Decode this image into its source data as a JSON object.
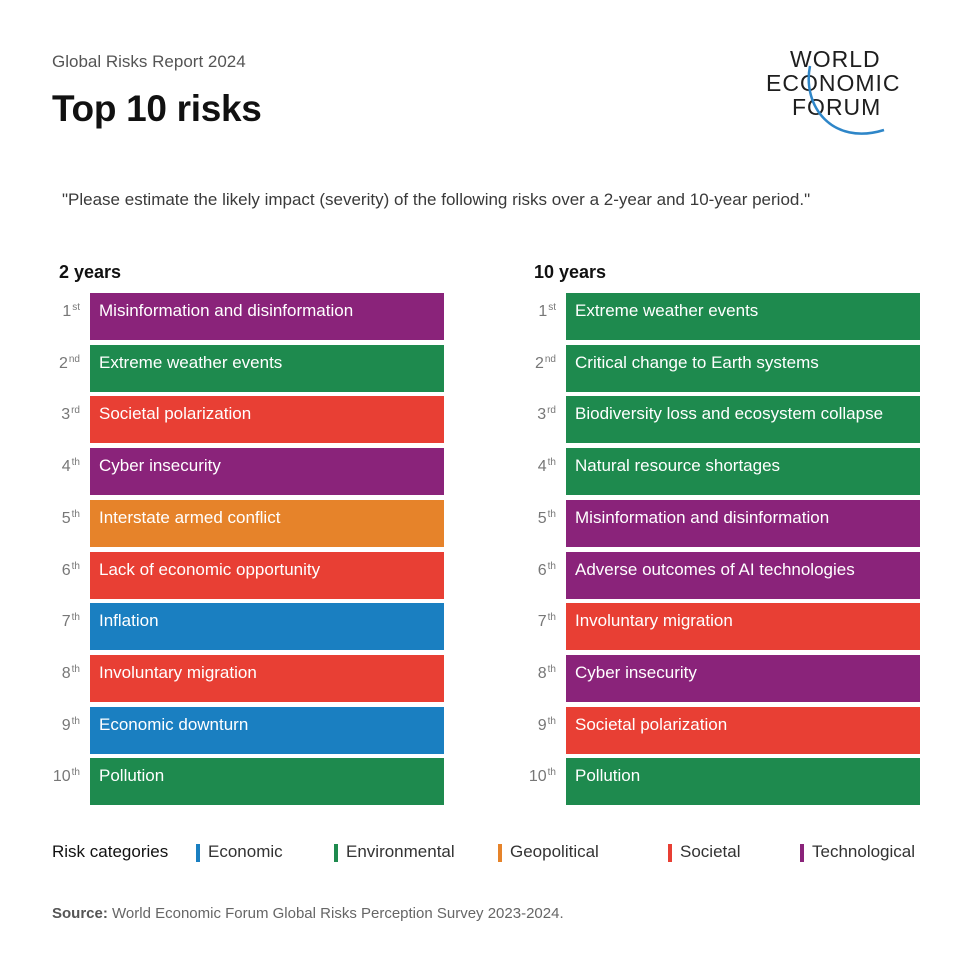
{
  "header": {
    "subtitle": "Global Risks Report 2024",
    "title": "Top 10 risks",
    "question": "\"Please estimate the likely impact (severity) of the following risks over a 2-year and 10-year period.\""
  },
  "logo": {
    "lines": [
      "WORLD",
      "ECONOMIC",
      "FORUM"
    ],
    "arc_color": "#2e86c8"
  },
  "chart_data": {
    "type": "table",
    "columns": [
      {
        "label": "2 years",
        "rows": [
          {
            "rank": "1",
            "suffix": "st",
            "risk": "Misinformation and disinformation",
            "category": "Technological"
          },
          {
            "rank": "2",
            "suffix": "nd",
            "risk": "Extreme weather events",
            "category": "Environmental"
          },
          {
            "rank": "3",
            "suffix": "rd",
            "risk": "Societal polarization",
            "category": "Societal"
          },
          {
            "rank": "4",
            "suffix": "th",
            "risk": "Cyber insecurity",
            "category": "Technological"
          },
          {
            "rank": "5",
            "suffix": "th",
            "risk": "Interstate armed conflict",
            "category": "Geopolitical"
          },
          {
            "rank": "6",
            "suffix": "th",
            "risk": "Lack of economic opportunity",
            "category": "Societal"
          },
          {
            "rank": "7",
            "suffix": "th",
            "risk": "Inflation",
            "category": "Economic"
          },
          {
            "rank": "8",
            "suffix": "th",
            "risk": "Involuntary migration",
            "category": "Societal"
          },
          {
            "rank": "9",
            "suffix": "th",
            "risk": "Economic downturn",
            "category": "Economic"
          },
          {
            "rank": "10",
            "suffix": "th",
            "risk": "Pollution",
            "category": "Environmental"
          }
        ]
      },
      {
        "label": "10 years",
        "rows": [
          {
            "rank": "1",
            "suffix": "st",
            "risk": "Extreme weather events",
            "category": "Environmental"
          },
          {
            "rank": "2",
            "suffix": "nd",
            "risk": "Critical change to Earth systems",
            "category": "Environmental"
          },
          {
            "rank": "3",
            "suffix": "rd",
            "risk": "Biodiversity loss and ecosystem collapse",
            "category": "Environmental"
          },
          {
            "rank": "4",
            "suffix": "th",
            "risk": "Natural resource shortages",
            "category": "Environmental"
          },
          {
            "rank": "5",
            "suffix": "th",
            "risk": "Misinformation and disinformation",
            "category": "Technological"
          },
          {
            "rank": "6",
            "suffix": "th",
            "risk": "Adverse outcomes of AI technologies",
            "category": "Technological"
          },
          {
            "rank": "7",
            "suffix": "th",
            "risk": "Involuntary migration",
            "category": "Societal"
          },
          {
            "rank": "8",
            "suffix": "th",
            "risk": "Cyber insecurity",
            "category": "Technological"
          },
          {
            "rank": "9",
            "suffix": "th",
            "risk": "Societal polarization",
            "category": "Societal"
          },
          {
            "rank": "10",
            "suffix": "th",
            "risk": "Pollution",
            "category": "Environmental"
          }
        ]
      }
    ],
    "legend": {
      "title": "Risk categories",
      "items": [
        {
          "name": "Economic",
          "color": "#1a7fc1"
        },
        {
          "name": "Environmental",
          "color": "#1e8a4e"
        },
        {
          "name": "Geopolitical",
          "color": "#e6832a"
        },
        {
          "name": "Societal",
          "color": "#e83f34"
        },
        {
          "name": "Technological",
          "color": "#8a237a"
        }
      ]
    }
  },
  "source": {
    "label": "Source:",
    "text": " World Economic Forum Global Risks Perception Survey 2023-2024."
  }
}
